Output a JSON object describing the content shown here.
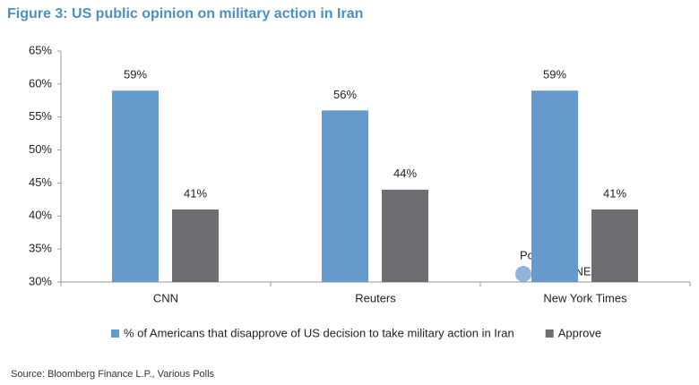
{
  "chart_data": {
    "type": "bar",
    "title": "Figure 3: US public opinion on military action in Iran",
    "categories": [
      "CNN",
      "Reuters",
      "New York Times"
    ],
    "series": [
      {
        "name": "% of Americans that disapprove of US decision to take military action in Iran",
        "color": "#6699cc",
        "values": [
          59,
          56,
          59
        ],
        "value_labels": [
          "59%",
          "56%",
          "59%"
        ]
      },
      {
        "name": "Approve",
        "color": "#6d6e71",
        "values": [
          41,
          44,
          41
        ],
        "value_labels": [
          "41%",
          "44%",
          "41%"
        ]
      }
    ],
    "ylim": [
      30,
      65
    ],
    "yticks": [
      {
        "value": 30,
        "label": "30%"
      },
      {
        "value": 35,
        "label": "35%"
      },
      {
        "value": 40,
        "label": "40%"
      },
      {
        "value": 45,
        "label": "45%"
      },
      {
        "value": 50,
        "label": "50%"
      },
      {
        "value": 55,
        "label": "55%"
      },
      {
        "value": 60,
        "label": "60%"
      },
      {
        "value": 65,
        "label": "65%"
      }
    ],
    "grid": false,
    "legend": "bottom",
    "source": "Source: Bloomberg Finance L.P., Various Polls",
    "watermark": [
      "Posted on",
      "ISABELNET.com"
    ]
  }
}
